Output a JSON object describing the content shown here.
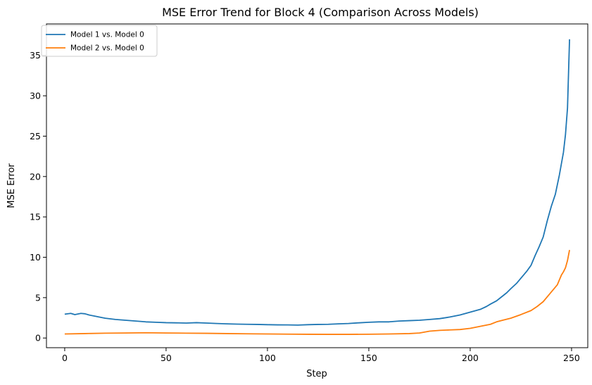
{
  "chart_data": {
    "type": "line",
    "title": "MSE Error Trend for Block 4 (Comparison Across Models)",
    "xlabel": "Step",
    "ylabel": "MSE Error",
    "xlim": [
      -9,
      258
    ],
    "ylim": [
      -1.2,
      38.9
    ],
    "xticks": [
      0,
      50,
      100,
      150,
      200,
      250
    ],
    "yticks": [
      0,
      5,
      10,
      15,
      20,
      25,
      30,
      35
    ],
    "grid": false,
    "legend_position": "top-left",
    "series": [
      {
        "name": "Model 1 vs. Model 0",
        "color": "#1f77b4",
        "points": [
          [
            0,
            2.95
          ],
          [
            3,
            3.05
          ],
          [
            5,
            2.9
          ],
          [
            8,
            3.05
          ],
          [
            10,
            3.0
          ],
          [
            12,
            2.85
          ],
          [
            15,
            2.7
          ],
          [
            18,
            2.55
          ],
          [
            20,
            2.45
          ],
          [
            25,
            2.3
          ],
          [
            30,
            2.2
          ],
          [
            35,
            2.1
          ],
          [
            40,
            2.0
          ],
          [
            45,
            1.95
          ],
          [
            50,
            1.9
          ],
          [
            55,
            1.88
          ],
          [
            60,
            1.85
          ],
          [
            65,
            1.9
          ],
          [
            70,
            1.85
          ],
          [
            75,
            1.8
          ],
          [
            80,
            1.75
          ],
          [
            85,
            1.72
          ],
          [
            90,
            1.7
          ],
          [
            95,
            1.68
          ],
          [
            100,
            1.65
          ],
          [
            105,
            1.63
          ],
          [
            110,
            1.62
          ],
          [
            115,
            1.6
          ],
          [
            120,
            1.65
          ],
          [
            125,
            1.68
          ],
          [
            130,
            1.7
          ],
          [
            135,
            1.75
          ],
          [
            140,
            1.8
          ],
          [
            145,
            1.88
          ],
          [
            150,
            1.95
          ],
          [
            155,
            2.0
          ],
          [
            160,
            2.0
          ],
          [
            165,
            2.1
          ],
          [
            170,
            2.15
          ],
          [
            175,
            2.2
          ],
          [
            180,
            2.3
          ],
          [
            185,
            2.4
          ],
          [
            190,
            2.6
          ],
          [
            195,
            2.85
          ],
          [
            200,
            3.2
          ],
          [
            205,
            3.55
          ],
          [
            208,
            3.9
          ],
          [
            210,
            4.2
          ],
          [
            213,
            4.6
          ],
          [
            215,
            5.0
          ],
          [
            218,
            5.6
          ],
          [
            220,
            6.1
          ],
          [
            223,
            6.8
          ],
          [
            225,
            7.4
          ],
          [
            228,
            8.3
          ],
          [
            230,
            9.0
          ],
          [
            232,
            10.2
          ],
          [
            234,
            11.3
          ],
          [
            236,
            12.5
          ],
          [
            238,
            14.5
          ],
          [
            240,
            16.3
          ],
          [
            242,
            17.8
          ],
          [
            244,
            20.2
          ],
          [
            246,
            23.0
          ],
          [
            247,
            25.2
          ],
          [
            248,
            28.5
          ],
          [
            249,
            37.0
          ]
        ]
      },
      {
        "name": "Model 2 vs. Model 0",
        "color": "#ff7f0e",
        "points": [
          [
            0,
            0.5
          ],
          [
            10,
            0.55
          ],
          [
            20,
            0.6
          ],
          [
            30,
            0.62
          ],
          [
            40,
            0.65
          ],
          [
            50,
            0.62
          ],
          [
            60,
            0.6
          ],
          [
            70,
            0.58
          ],
          [
            80,
            0.55
          ],
          [
            90,
            0.52
          ],
          [
            100,
            0.5
          ],
          [
            110,
            0.48
          ],
          [
            120,
            0.46
          ],
          [
            130,
            0.45
          ],
          [
            140,
            0.45
          ],
          [
            150,
            0.47
          ],
          [
            160,
            0.5
          ],
          [
            170,
            0.55
          ],
          [
            175,
            0.62
          ],
          [
            180,
            0.85
          ],
          [
            185,
            0.95
          ],
          [
            190,
            1.0
          ],
          [
            195,
            1.05
          ],
          [
            200,
            1.2
          ],
          [
            205,
            1.45
          ],
          [
            210,
            1.7
          ],
          [
            213,
            2.0
          ],
          [
            216,
            2.2
          ],
          [
            220,
            2.45
          ],
          [
            225,
            2.9
          ],
          [
            230,
            3.4
          ],
          [
            233,
            3.9
          ],
          [
            236,
            4.5
          ],
          [
            239,
            5.4
          ],
          [
            241,
            6.0
          ],
          [
            243,
            6.6
          ],
          [
            245,
            7.8
          ],
          [
            246,
            8.2
          ],
          [
            247,
            8.7
          ],
          [
            248,
            9.6
          ],
          [
            249,
            10.9
          ]
        ]
      }
    ]
  }
}
